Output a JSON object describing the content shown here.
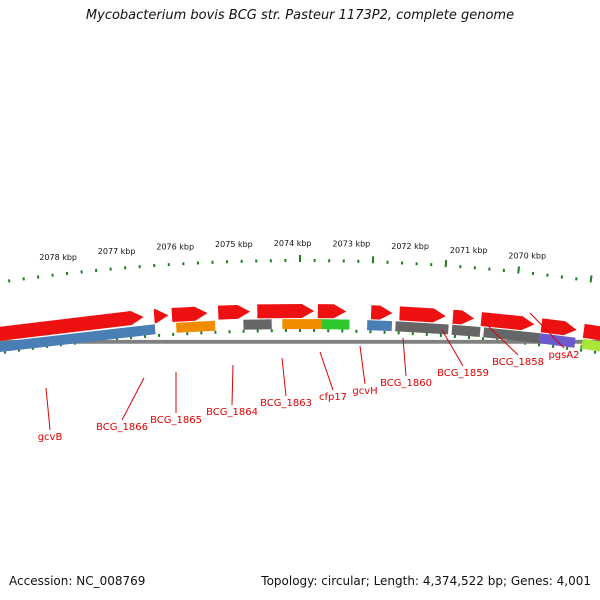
{
  "header": {
    "title": "Mycobacterium bovis BCG str. Pasteur 1173P2, complete genome"
  },
  "footer": {
    "accession_label": "Accession:",
    "accession": "NC_008769",
    "topology_label": "Topology:",
    "topology": "circular",
    "length_label": "Length:",
    "length": "4,374,522 bp",
    "genes_label": "Genes:",
    "genes": "4,001"
  },
  "colors": {
    "backbone": "#808080",
    "tick": "#1e7d1e",
    "forward": "#ee1111",
    "label": "#dd0000",
    "blue": "#4a7fb5",
    "orange": "#f08c00",
    "grey": "#666666",
    "green": "#2ec82e",
    "purple": "#6a5acd",
    "lime": "#a8e63a"
  },
  "kbp_labels": [
    "2078 kbp",
    "2077 kbp",
    "2076 kbp",
    "2075 kbp",
    "2074 kbp",
    "2073 kbp",
    "2072 kbp",
    "2071 kbp",
    "2070 kbp"
  ],
  "genes": [
    "gcvB",
    "BCG_1866",
    "BCG_1865",
    "BCG_1864",
    "BCG_1863",
    "cfp17",
    "gcvH",
    "BCG_1860",
    "BCG_1859",
    "BCG_1858",
    "pgsA2"
  ]
}
